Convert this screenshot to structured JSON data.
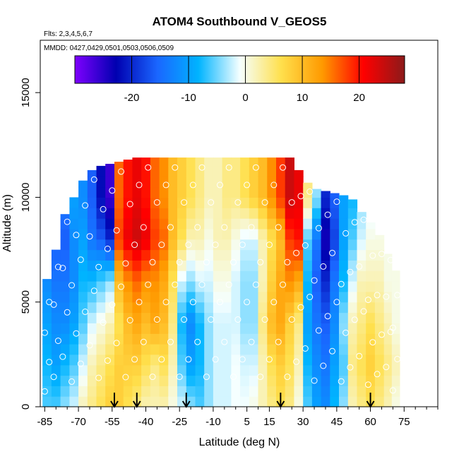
{
  "chart_data": {
    "type": "heatmap",
    "title": "ATOM4 Southbound V_GEOS5",
    "annotations": [
      "Flts: 2,3,4,5,6,7",
      "MMDD: 0427,0429,0501,0503,0506,0509"
    ],
    "xlabel": "Latitude (deg N)",
    "ylabel": "Altitude (m)",
    "xlim": [
      -87,
      90
    ],
    "ylim": [
      0,
      17500
    ],
    "x_ticks": [
      -85,
      -70,
      -55,
      -40,
      -25,
      -10,
      5,
      15,
      30,
      45,
      60,
      75
    ],
    "y_ticks": [
      0,
      5000,
      10000,
      15000
    ],
    "colorbar": {
      "range": [
        -30,
        28
      ],
      "ticks": [
        -20,
        -10,
        0,
        10,
        20
      ],
      "colors": [
        "#7f00ff",
        "#0000b0",
        "#1a66ff",
        "#00b4ff",
        "#f5ffff",
        "#ffe04d",
        "#ff9a00",
        "#ff0000",
        "#8b1a1a"
      ]
    },
    "arrows_lat": [
      -54,
      -44,
      -22,
      20,
      60
    ],
    "columns": [
      {
        "lat": -84,
        "ztop": 6100,
        "v": [
          -6,
          -8,
          -10,
          -12,
          -15,
          -18
        ]
      },
      {
        "lat": -80,
        "ztop": 7500,
        "v": [
          -6,
          -10,
          -12,
          -14,
          -16,
          -18
        ]
      },
      {
        "lat": -76,
        "ztop": 9200,
        "v": [
          -4,
          -8,
          -12,
          -14,
          -16,
          -14
        ]
      },
      {
        "lat": -72,
        "ztop": 10000,
        "v": [
          -2,
          -6,
          -10,
          -12,
          -12,
          -10
        ]
      },
      {
        "lat": -68,
        "ztop": 10800,
        "v": [
          2,
          -2,
          -6,
          -8,
          -10,
          -12
        ]
      },
      {
        "lat": -64,
        "ztop": 11300,
        "v": [
          4,
          2,
          -2,
          -8,
          -14,
          -16
        ]
      },
      {
        "lat": -60,
        "ztop": 11500,
        "v": [
          6,
          4,
          0,
          -6,
          -16,
          -22
        ]
      },
      {
        "lat": -56,
        "ztop": 11600,
        "v": [
          8,
          6,
          2,
          -4,
          -20,
          -26
        ]
      },
      {
        "lat": -52,
        "ztop": 11700,
        "v": [
          8,
          8,
          6,
          10,
          18,
          16
        ]
      },
      {
        "lat": -48,
        "ztop": 11800,
        "v": [
          6,
          8,
          10,
          14,
          22,
          20
        ]
      },
      {
        "lat": -44,
        "ztop": 11900,
        "v": [
          4,
          8,
          12,
          16,
          24,
          22
        ]
      },
      {
        "lat": -40,
        "ztop": 11900,
        "v": [
          2,
          6,
          10,
          14,
          22,
          20
        ]
      },
      {
        "lat": -36,
        "ztop": 11900,
        "v": [
          2,
          4,
          12,
          14,
          18,
          16
        ]
      },
      {
        "lat": -32,
        "ztop": 11900,
        "v": [
          2,
          6,
          10,
          12,
          16,
          14
        ]
      },
      {
        "lat": -28,
        "ztop": 11900,
        "v": [
          0,
          2,
          4,
          6,
          10,
          10
        ]
      },
      {
        "lat": -24,
        "ztop": 11900,
        "v": [
          -2,
          -6,
          -8,
          -2,
          6,
          8
        ]
      },
      {
        "lat": -20,
        "ztop": 11900,
        "v": [
          -4,
          -10,
          -12,
          -4,
          2,
          6
        ]
      },
      {
        "lat": -16,
        "ztop": 11900,
        "v": [
          -6,
          -8,
          -8,
          -2,
          2,
          4
        ]
      },
      {
        "lat": -12,
        "ztop": 11900,
        "v": [
          -4,
          -4,
          -4,
          -2,
          0,
          2
        ]
      },
      {
        "lat": -8,
        "ztop": 11900,
        "v": [
          -2,
          -2,
          -2,
          0,
          2,
          2
        ]
      },
      {
        "lat": -4,
        "ztop": 11900,
        "v": [
          -2,
          -2,
          -2,
          0,
          2,
          4
        ]
      },
      {
        "lat": 0,
        "ztop": 11900,
        "v": [
          -1,
          -1,
          -2,
          -2,
          0,
          4
        ]
      },
      {
        "lat": 4,
        "ztop": 11900,
        "v": [
          -1,
          -2,
          -4,
          -4,
          -2,
          6
        ]
      },
      {
        "lat": 8,
        "ztop": 11900,
        "v": [
          0,
          -2,
          -4,
          -4,
          -2,
          8
        ]
      },
      {
        "lat": 12,
        "ztop": 11900,
        "v": [
          2,
          2,
          4,
          2,
          2,
          10
        ]
      },
      {
        "lat": 16,
        "ztop": 11900,
        "v": [
          4,
          6,
          10,
          8,
          6,
          14
        ]
      },
      {
        "lat": 20,
        "ztop": 11900,
        "v": [
          6,
          8,
          12,
          12,
          10,
          18
        ]
      },
      {
        "lat": 24,
        "ztop": 11900,
        "v": [
          4,
          6,
          8,
          14,
          18,
          24
        ]
      },
      {
        "lat": 28,
        "ztop": 11300,
        "v": [
          0,
          2,
          4,
          12,
          20,
          22
        ]
      },
      {
        "lat": 32,
        "ztop": 10700,
        "v": [
          -6,
          -8,
          -10,
          -8,
          -6,
          4
        ]
      },
      {
        "lat": 36,
        "ztop": 10400,
        "v": [
          -10,
          -12,
          -14,
          -16,
          -14,
          -4
        ]
      },
      {
        "lat": 40,
        "ztop": 10300,
        "v": [
          -12,
          -14,
          -16,
          -20,
          -24,
          -20
        ]
      },
      {
        "lat": 44,
        "ztop": 10200,
        "v": [
          -8,
          -10,
          -12,
          -14,
          -18,
          -16
        ]
      },
      {
        "lat": 48,
        "ztop": 10100,
        "v": [
          -4,
          -6,
          -4,
          -8,
          -10,
          -10
        ]
      },
      {
        "lat": 52,
        "ztop": 9900,
        "v": [
          2,
          4,
          2,
          -2,
          -6,
          -8
        ]
      },
      {
        "lat": 56,
        "ztop": 9300,
        "v": [
          4,
          6,
          4,
          2,
          -2,
          -4
        ]
      },
      {
        "lat": 60,
        "ztop": 8800,
        "v": [
          6,
          8,
          6,
          2,
          0,
          -2
        ]
      },
      {
        "lat": 64,
        "ztop": 8200,
        "v": [
          4,
          6,
          4,
          2,
          0,
          0
        ]
      },
      {
        "lat": 68,
        "ztop": 7300,
        "v": [
          2,
          4,
          2,
          0,
          0,
          0
        ]
      },
      {
        "lat": 71,
        "ztop": 6500,
        "v": [
          0,
          2,
          0,
          0,
          0,
          0
        ]
      }
    ]
  }
}
